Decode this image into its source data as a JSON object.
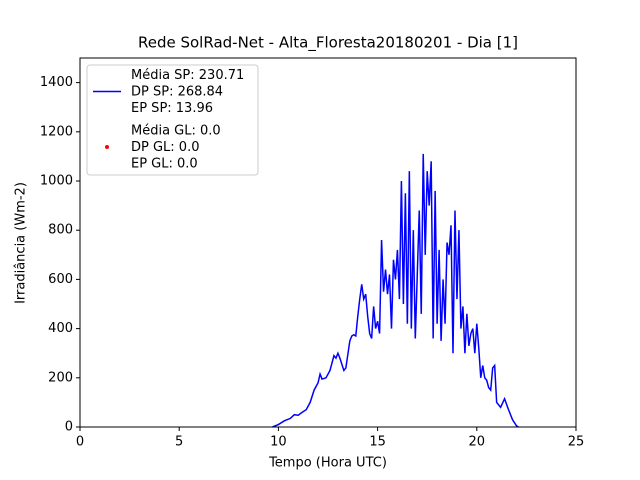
{
  "chart_data": {
    "type": "line",
    "title": "Rede SolRad-Net - Alta_Floresta20180201 - Dia [1]",
    "x_label": "Tempo (Hora UTC)",
    "y_label": "Irradiância (Wm-2)",
    "xlim": [
      0,
      25
    ],
    "xticks": [
      0,
      5,
      10,
      15,
      20,
      25
    ],
    "ylim": [
      0,
      1500
    ],
    "yticks": [
      0,
      200,
      400,
      600,
      800,
      1000,
      1200,
      1400
    ],
    "legend": "upper left",
    "x": [
      9.7,
      10,
      10.3,
      10.6,
      10.8,
      11,
      11.2,
      11.4,
      11.6,
      11.8,
      12,
      12.1,
      12.2,
      12.4,
      12.6,
      12.8,
      12.9,
      13,
      13.1,
      13.3,
      13.4,
      13.6,
      13.7,
      13.8,
      13.9,
      14,
      14.1,
      14.2,
      14.3,
      14.4,
      14.5,
      14.6,
      14.7,
      14.8,
      14.9,
      15,
      15.1,
      15.2,
      15.3,
      15.4,
      15.5,
      15.6,
      15.7,
      15.8,
      15.9,
      16,
      16.1,
      16.2,
      16.3,
      16.4,
      16.5,
      16.6,
      16.7,
      16.8,
      16.9,
      17,
      17.1,
      17.2,
      17.3,
      17.4,
      17.5,
      17.6,
      17.7,
      17.8,
      17.9,
      18,
      18.1,
      18.2,
      18.3,
      18.4,
      18.5,
      18.6,
      18.7,
      18.8,
      18.9,
      19,
      19.1,
      19.2,
      19.3,
      19.4,
      19.5,
      19.6,
      19.7,
      19.8,
      19.9,
      20,
      20.1,
      20.2,
      20.3,
      20.4,
      20.5,
      20.6,
      20.7,
      20.8,
      20.9,
      21,
      21.2,
      21.4,
      21.6,
      21.8,
      22,
      22.1
    ],
    "series": [
      {
        "name": "Média SP: 230.71\nDP SP: 268.84\nEP SP: 13.96",
        "type": "line",
        "color": "#0000ff",
        "values": [
          0,
          10,
          25,
          35,
          50,
          48,
          60,
          70,
          100,
          150,
          180,
          215,
          195,
          200,
          230,
          290,
          280,
          300,
          280,
          230,
          240,
          350,
          370,
          375,
          370,
          450,
          520,
          580,
          520,
          540,
          450,
          380,
          360,
          490,
          400,
          430,
          380,
          760,
          550,
          640,
          540,
          620,
          400,
          680,
          600,
          720,
          520,
          1000,
          500,
          950,
          420,
          1040,
          400,
          800,
          360,
          620,
          880,
          460,
          1110,
          700,
          1040,
          900,
          1080,
          360,
          960,
          420,
          720,
          350,
          600,
          420,
          750,
          700,
          820,
          300,
          880,
          520,
          800,
          400,
          490,
          300,
          460,
          330,
          380,
          400,
          300,
          420,
          320,
          200,
          250,
          200,
          190,
          160,
          150,
          240,
          250,
          100,
          80,
          115,
          70,
          30,
          5,
          0
        ]
      },
      {
        "name": "Média GL: 0.0\nDP GL: 0.0\nEP GL: 0.0",
        "type": "scatter",
        "color": "#ff0000",
        "values": []
      }
    ]
  }
}
